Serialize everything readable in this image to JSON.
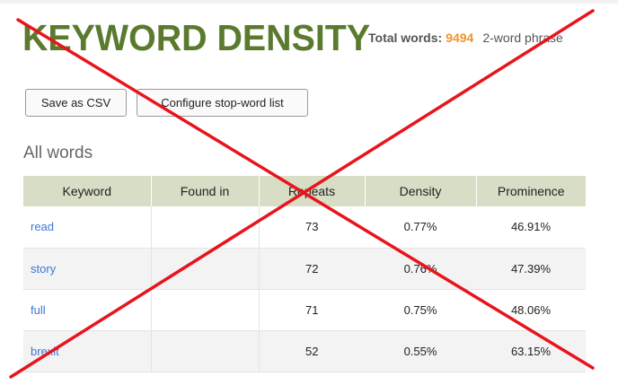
{
  "header": {
    "title": "KEYWORD DENSITY",
    "total_words_label": "Total words:",
    "total_words_value": "9494",
    "phrase_label": "2-word phrase"
  },
  "toolbar": {
    "save_label": "Save as CSV",
    "config_label": "Configure stop-word list"
  },
  "section": {
    "title": "All words"
  },
  "table": {
    "columns": [
      "Keyword",
      "Found in",
      "Repeats",
      "Density",
      "Prominence"
    ],
    "rows": [
      {
        "keyword": "read",
        "found_in": "",
        "repeats": "73",
        "density": "0.77%",
        "prominence": "46.91%"
      },
      {
        "keyword": "story",
        "found_in": "",
        "repeats": "72",
        "density": "0.76%",
        "prominence": "47.39%"
      },
      {
        "keyword": "full",
        "found_in": "",
        "repeats": "71",
        "density": "0.75%",
        "prominence": "48.06%"
      },
      {
        "keyword": "brexit",
        "found_in": "",
        "repeats": "52",
        "density": "0.55%",
        "prominence": "63.15%"
      }
    ]
  },
  "colors": {
    "title": "#5a7a2e",
    "accent": "#f0932b",
    "link": "#3a78d6",
    "header_bg": "#d8ddc5",
    "cross": "#e8141c"
  },
  "overlay": {
    "icon": "red-cross-icon"
  }
}
